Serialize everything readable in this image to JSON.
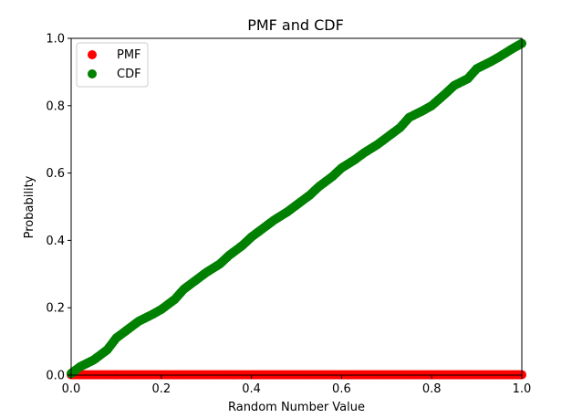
{
  "chart_data": {
    "type": "scatter",
    "title": "PMF and CDF",
    "xlabel": "Random Number Value",
    "ylabel": "Probability",
    "xlim": [
      0.0,
      1.0
    ],
    "ylim": [
      0.0,
      1.0
    ],
    "xticks": [
      "0.0",
      "0.2",
      "0.4",
      "0.6",
      "0.8",
      "1.0"
    ],
    "yticks": [
      "0.0",
      "0.2",
      "0.4",
      "0.6",
      "0.8",
      "1.0"
    ],
    "grid": false,
    "legend_position": "top-left",
    "series": [
      {
        "name": "PMF",
        "color": "#ff0000",
        "marker": "circle",
        "x": [
          0.0,
          1.0
        ],
        "y": [
          0.001,
          0.001
        ],
        "note_shape": "dense points along y≈0.001"
      },
      {
        "name": "CDF",
        "color": "#008000",
        "marker": "circle",
        "x": [
          0.0,
          0.02,
          0.05,
          0.08,
          0.1,
          0.12,
          0.15,
          0.18,
          0.2,
          0.23,
          0.25,
          0.28,
          0.3,
          0.33,
          0.35,
          0.38,
          0.4,
          0.42,
          0.45,
          0.48,
          0.5,
          0.53,
          0.55,
          0.58,
          0.6,
          0.63,
          0.65,
          0.68,
          0.7,
          0.73,
          0.75,
          0.78,
          0.8,
          0.83,
          0.85,
          0.88,
          0.9,
          0.93,
          0.95,
          0.98,
          1.0
        ],
        "y": [
          0.005,
          0.025,
          0.045,
          0.075,
          0.11,
          0.13,
          0.16,
          0.18,
          0.195,
          0.225,
          0.255,
          0.285,
          0.305,
          0.33,
          0.355,
          0.385,
          0.41,
          0.43,
          0.46,
          0.485,
          0.505,
          0.535,
          0.56,
          0.59,
          0.615,
          0.64,
          0.66,
          0.685,
          0.705,
          0.735,
          0.765,
          0.785,
          0.8,
          0.835,
          0.86,
          0.88,
          0.91,
          0.93,
          0.945,
          0.97,
          0.985
        ]
      }
    ]
  }
}
